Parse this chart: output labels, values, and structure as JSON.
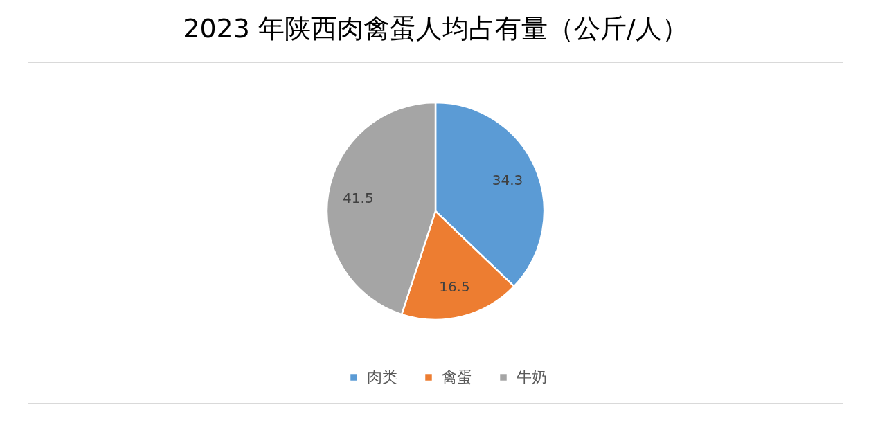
{
  "chart_data": {
    "type": "pie",
    "title": "2023 年陕西肉禽蛋人均占有量（公斤/人）",
    "categories": [
      "肉类",
      "禽蛋",
      "牛奶"
    ],
    "values": [
      34.3,
      16.5,
      41.5
    ],
    "colors": [
      "#5b9bd5",
      "#ed7d31",
      "#a5a5a5"
    ],
    "data_labels": true,
    "legend": "bottom"
  }
}
